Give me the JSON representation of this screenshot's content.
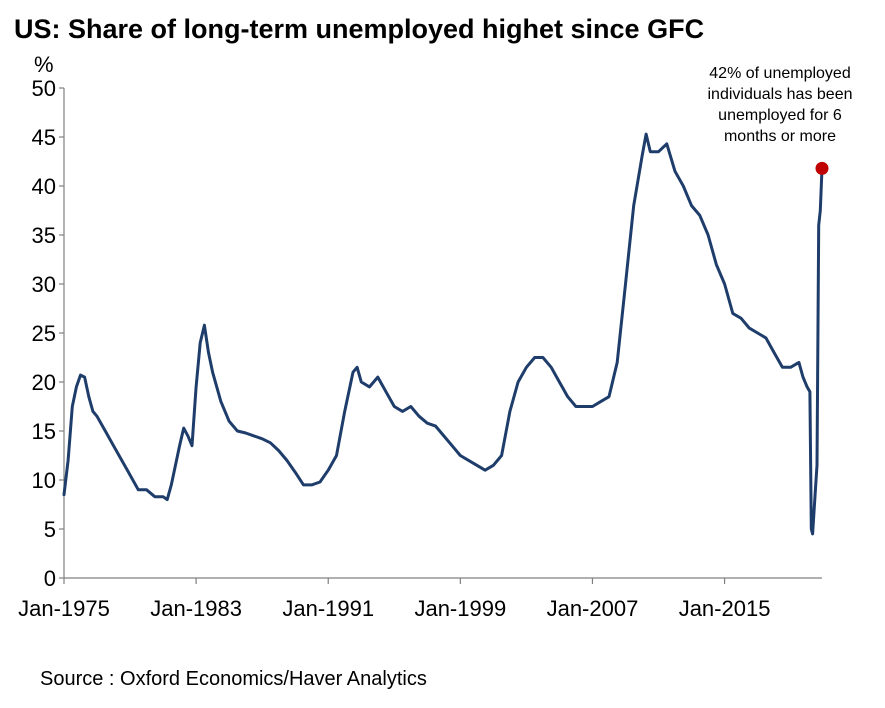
{
  "chart_data": {
    "type": "line",
    "title": "US: Share of long-term unemployed highet since GFC",
    "ylabel": "%",
    "xlabel": "",
    "ylim": [
      0,
      50
    ],
    "yticks": [
      0,
      5,
      10,
      15,
      20,
      25,
      30,
      35,
      40,
      45,
      50
    ],
    "xlim": [
      1975.0,
      2020.9
    ],
    "xticks": [
      {
        "label": "Jan-1975",
        "value": 1975.0
      },
      {
        "label": "Jan-1983",
        "value": 1983.0
      },
      {
        "label": "Jan-1991",
        "value": 1991.0
      },
      {
        "label": "Jan-1999",
        "value": 1999.0
      },
      {
        "label": "Jan-2007",
        "value": 2007.0
      },
      {
        "label": "Jan-2015",
        "value": 2015.0
      }
    ],
    "grid": false,
    "series": [
      {
        "name": "Share of long-term unemployed",
        "color": "#1f3d6b",
        "points": [
          [
            1975.0,
            8.5
          ],
          [
            1975.25,
            12.0
          ],
          [
            1975.5,
            17.5
          ],
          [
            1975.75,
            19.5
          ],
          [
            1976.0,
            20.7
          ],
          [
            1976.25,
            20.5
          ],
          [
            1976.5,
            18.5
          ],
          [
            1976.75,
            17.0
          ],
          [
            1977.0,
            16.5
          ],
          [
            1977.5,
            15.0
          ],
          [
            1978.0,
            13.5
          ],
          [
            1978.5,
            12.0
          ],
          [
            1979.0,
            10.5
          ],
          [
            1979.5,
            9.0
          ],
          [
            1980.0,
            9.0
          ],
          [
            1980.5,
            8.3
          ],
          [
            1981.0,
            8.3
          ],
          [
            1981.25,
            8.0
          ],
          [
            1981.5,
            9.5
          ],
          [
            1982.0,
            13.5
          ],
          [
            1982.25,
            15.3
          ],
          [
            1982.5,
            14.5
          ],
          [
            1982.75,
            13.5
          ],
          [
            1983.0,
            19.5
          ],
          [
            1983.25,
            24.0
          ],
          [
            1983.5,
            25.8
          ],
          [
            1983.75,
            23.0
          ],
          [
            1984.0,
            21.0
          ],
          [
            1984.5,
            18.0
          ],
          [
            1985.0,
            16.0
          ],
          [
            1985.5,
            15.0
          ],
          [
            1986.0,
            14.8
          ],
          [
            1986.5,
            14.5
          ],
          [
            1987.0,
            14.2
          ],
          [
            1987.5,
            13.8
          ],
          [
            1988.0,
            13.0
          ],
          [
            1988.5,
            12.0
          ],
          [
            1989.0,
            10.8
          ],
          [
            1989.5,
            9.5
          ],
          [
            1990.0,
            9.5
          ],
          [
            1990.5,
            9.8
          ],
          [
            1991.0,
            11.0
          ],
          [
            1991.5,
            12.5
          ],
          [
            1992.0,
            17.0
          ],
          [
            1992.5,
            21.0
          ],
          [
            1992.75,
            21.5
          ],
          [
            1993.0,
            20.0
          ],
          [
            1993.5,
            19.5
          ],
          [
            1994.0,
            20.5
          ],
          [
            1994.5,
            19.0
          ],
          [
            1995.0,
            17.5
          ],
          [
            1995.5,
            17.0
          ],
          [
            1996.0,
            17.5
          ],
          [
            1996.5,
            16.5
          ],
          [
            1997.0,
            15.8
          ],
          [
            1997.5,
            15.5
          ],
          [
            1998.0,
            14.5
          ],
          [
            1998.5,
            13.5
          ],
          [
            1999.0,
            12.5
          ],
          [
            1999.5,
            12.0
          ],
          [
            2000.0,
            11.5
          ],
          [
            2000.5,
            11.0
          ],
          [
            2001.0,
            11.5
          ],
          [
            2001.5,
            12.5
          ],
          [
            2002.0,
            17.0
          ],
          [
            2002.5,
            20.0
          ],
          [
            2003.0,
            21.5
          ],
          [
            2003.5,
            22.5
          ],
          [
            2004.0,
            22.5
          ],
          [
            2004.5,
            21.5
          ],
          [
            2005.0,
            20.0
          ],
          [
            2005.5,
            18.5
          ],
          [
            2006.0,
            17.5
          ],
          [
            2006.5,
            17.5
          ],
          [
            2007.0,
            17.5
          ],
          [
            2007.5,
            18.0
          ],
          [
            2008.0,
            18.5
          ],
          [
            2008.5,
            22.0
          ],
          [
            2009.0,
            30.0
          ],
          [
            2009.5,
            38.0
          ],
          [
            2010.0,
            43.0
          ],
          [
            2010.25,
            45.3
          ],
          [
            2010.5,
            43.5
          ],
          [
            2011.0,
            43.5
          ],
          [
            2011.5,
            44.3
          ],
          [
            2012.0,
            41.5
          ],
          [
            2012.5,
            40.0
          ],
          [
            2013.0,
            38.0
          ],
          [
            2013.5,
            37.0
          ],
          [
            2014.0,
            35.0
          ],
          [
            2014.5,
            32.0
          ],
          [
            2015.0,
            30.0
          ],
          [
            2015.5,
            27.0
          ],
          [
            2016.0,
            26.5
          ],
          [
            2016.5,
            25.5
          ],
          [
            2017.0,
            25.0
          ],
          [
            2017.5,
            24.5
          ],
          [
            2018.0,
            23.0
          ],
          [
            2018.5,
            21.5
          ],
          [
            2019.0,
            21.5
          ],
          [
            2019.5,
            22.0
          ],
          [
            2019.75,
            20.5
          ],
          [
            2020.0,
            19.5
          ],
          [
            2020.17,
            19.0
          ],
          [
            2020.25,
            5.0
          ],
          [
            2020.33,
            4.5
          ],
          [
            2020.5,
            9.0
          ],
          [
            2020.6,
            11.5
          ],
          [
            2020.7,
            36.0
          ],
          [
            2020.8,
            37.5
          ],
          [
            2020.9,
            41.8
          ]
        ]
      }
    ],
    "highlight": {
      "x": 2020.9,
      "y": 41.8,
      "color": "#c00000"
    },
    "annotation": {
      "lines": [
        "42% of unemployed",
        "individuals has been",
        "unemployed for 6",
        "months or more"
      ]
    }
  },
  "source": "Source : Oxford Economics/Haver Analytics"
}
